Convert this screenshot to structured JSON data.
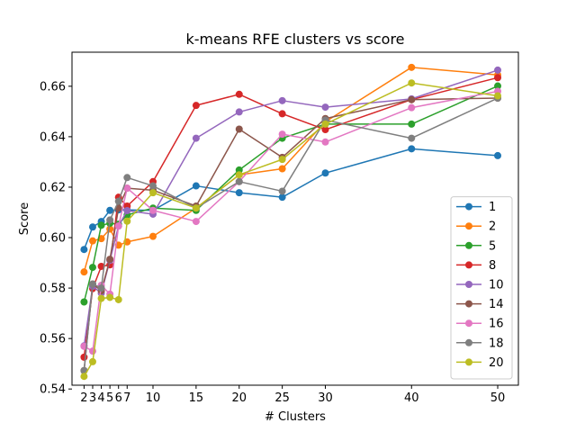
{
  "chart_data": {
    "type": "line",
    "title": "k-means RFE clusters vs score",
    "xlabel": "# Clusters",
    "ylabel": "Score",
    "xlim": [
      0.6,
      52.4
    ],
    "ylim": [
      0.5415,
      0.6735
    ],
    "x": [
      2,
      3,
      4,
      5,
      6,
      7,
      10,
      15,
      20,
      25,
      30,
      40,
      50
    ],
    "xticks": [
      2,
      3,
      4,
      5,
      6,
      7,
      10,
      15,
      20,
      25,
      30,
      40,
      50
    ],
    "yticks": [
      0.54,
      0.56,
      0.58,
      0.6,
      0.62,
      0.64,
      0.66
    ],
    "grid": false,
    "legend_position": "lower-right",
    "series": [
      {
        "name": "1",
        "color": "#1f77b4",
        "values": [
          0.5953,
          0.6042,
          0.6064,
          0.6108,
          0.611,
          0.611,
          0.6108,
          0.6205,
          0.6178,
          0.616,
          0.6256,
          0.6352,
          0.6325
        ]
      },
      {
        "name": "2",
        "color": "#ff7f0e",
        "values": [
          0.5864,
          0.5987,
          0.5996,
          0.6034,
          0.597,
          0.5983,
          0.6005,
          0.6117,
          0.6249,
          0.6273,
          0.6459,
          0.6675,
          0.6645
        ]
      },
      {
        "name": "5",
        "color": "#2ca02c",
        "values": [
          0.5745,
          0.5882,
          0.6049,
          0.6057,
          0.6053,
          0.609,
          0.6117,
          0.6108,
          0.6268,
          0.6394,
          0.645,
          0.645,
          0.6601
        ]
      },
      {
        "name": "8",
        "color": "#d62728",
        "values": [
          0.5526,
          0.5798,
          0.5886,
          0.5892,
          0.616,
          0.6125,
          0.6222,
          0.6524,
          0.6568,
          0.6491,
          0.6428,
          0.6547,
          0.6634
        ]
      },
      {
        "name": "10",
        "color": "#9467bd",
        "values": [
          0.5571,
          0.5807,
          0.578,
          0.591,
          0.6046,
          0.6107,
          0.6093,
          0.6394,
          0.6498,
          0.6543,
          0.6517,
          0.655,
          0.6664
        ]
      },
      {
        "name": "14",
        "color": "#8c564b",
        "values": [
          0.5473,
          0.5816,
          0.5789,
          0.5914,
          0.6117,
          0.6196,
          0.6188,
          0.6125,
          0.643,
          0.6318,
          0.6472,
          0.6547,
          0.6553
        ]
      },
      {
        "name": "16",
        "color": "#e377c2",
        "values": [
          0.5569,
          0.555,
          0.5811,
          0.5776,
          0.6046,
          0.6196,
          0.6108,
          0.6064,
          0.6222,
          0.641,
          0.6379,
          0.6515,
          0.658
        ]
      },
      {
        "name": "18",
        "color": "#7f7f7f",
        "values": [
          0.5473,
          0.5816,
          0.58,
          0.607,
          0.6144,
          0.6238,
          0.6205,
          0.6117,
          0.6222,
          0.6184,
          0.6466,
          0.6394,
          0.6553
        ]
      },
      {
        "name": "20",
        "color": "#bcbd22",
        "values": [
          0.545,
          0.5508,
          0.5759,
          0.5763,
          0.5754,
          0.6065,
          0.6178,
          0.6117,
          0.6249,
          0.631,
          0.645,
          0.6613,
          0.6562
        ]
      }
    ]
  }
}
